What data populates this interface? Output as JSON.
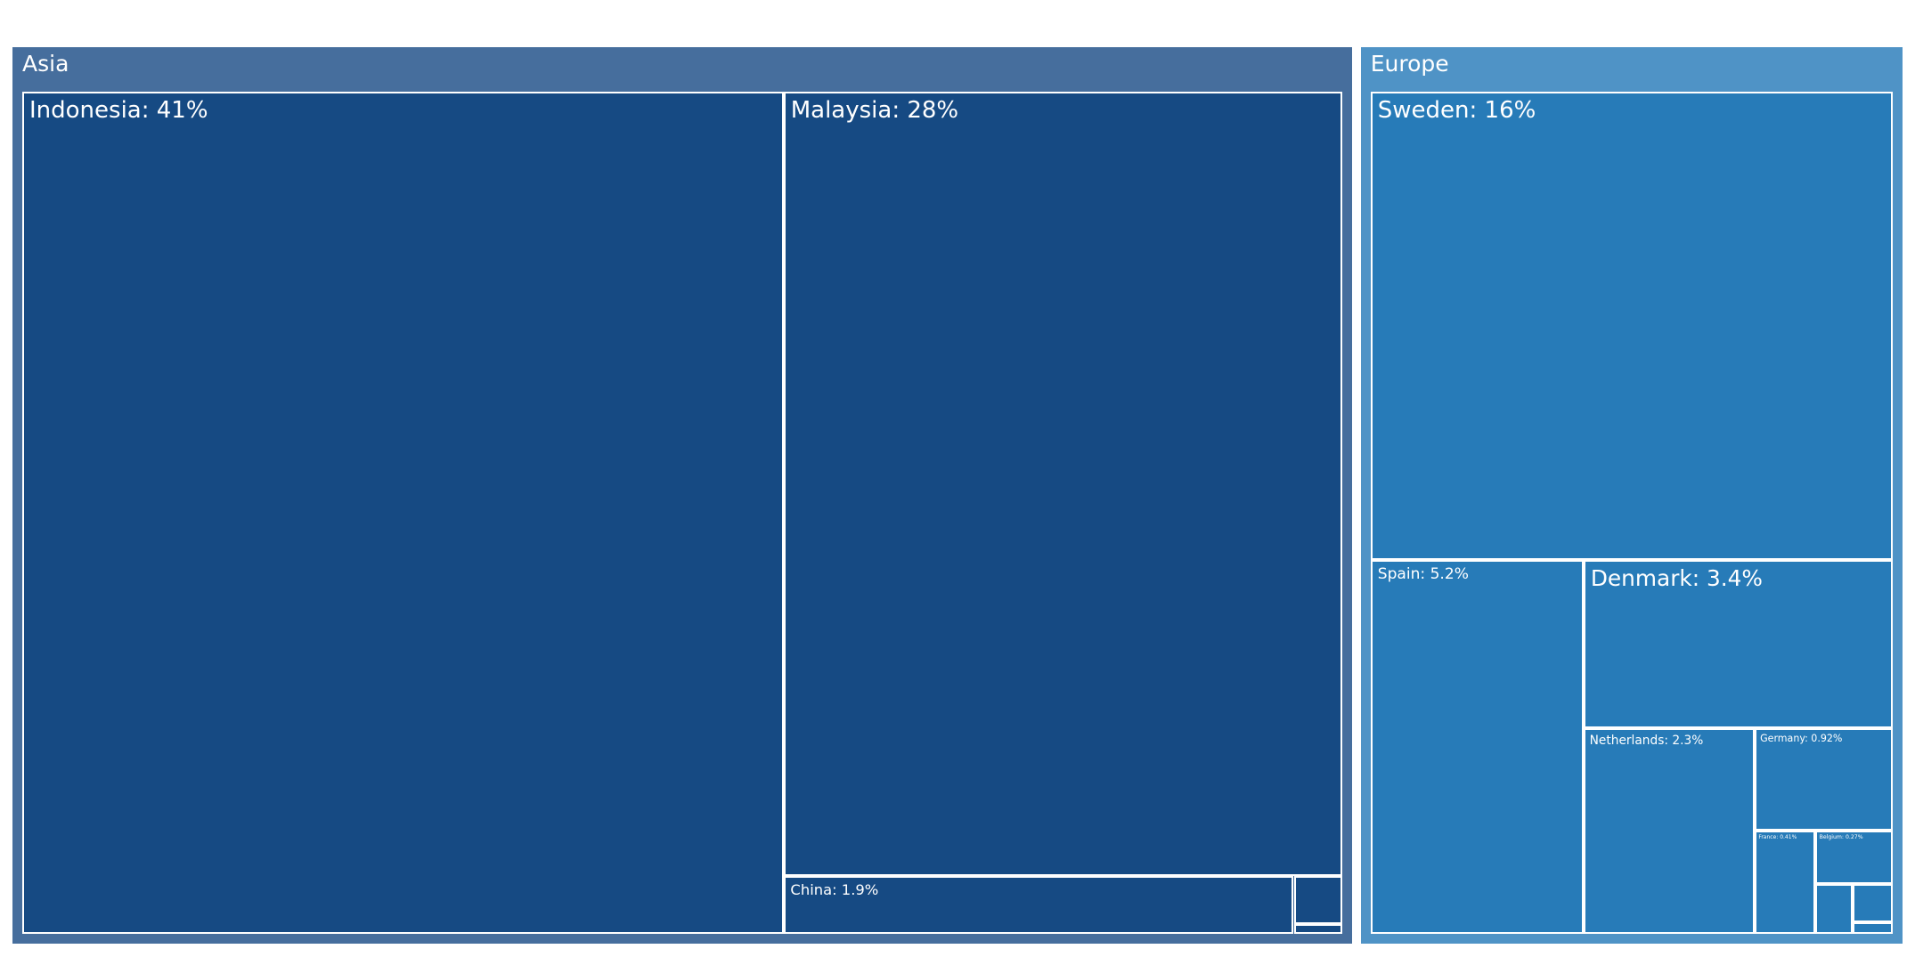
{
  "chart_data": {
    "type": "treemap",
    "title": "",
    "groups": [
      {
        "name": "Asia",
        "color": "#466e9d",
        "leaf_color": "#164a83",
        "items": [
          {
            "name": "Indonesia",
            "label": "Indonesia: 41%",
            "value": 41
          },
          {
            "name": "Malaysia",
            "label": "Malaysia: 28%",
            "value": 28
          },
          {
            "name": "China",
            "label": "China: 1.9%",
            "value": 1.9
          },
          {
            "name": "",
            "label": "",
            "value": 0.15
          },
          {
            "name": "",
            "label": "",
            "value": 0.03
          }
        ]
      },
      {
        "name": "Europe",
        "color": "#4f93c6",
        "leaf_color": "#277bb8",
        "items": [
          {
            "name": "Sweden",
            "label": "Sweden: 16%",
            "value": 16
          },
          {
            "name": "Spain",
            "label": "Spain: 5.2%",
            "value": 5.2
          },
          {
            "name": "Denmark",
            "label": "Denmark: 3.4%",
            "value": 3.4
          },
          {
            "name": "Netherlands",
            "label": "Netherlands: 2.3%",
            "value": 2.3
          },
          {
            "name": "Germany",
            "label": "Germany: 0.92%",
            "value": 0.92
          },
          {
            "name": "France",
            "label": "France: 0.41%",
            "value": 0.41
          },
          {
            "name": "Belgium",
            "label": "Belgium: 0.27%",
            "value": 0.27
          },
          {
            "name": "",
            "label": "",
            "value": 0.12
          },
          {
            "name": "",
            "label": "",
            "value": 0.1
          },
          {
            "name": "",
            "label": "",
            "value": 0.03
          }
        ]
      }
    ]
  }
}
